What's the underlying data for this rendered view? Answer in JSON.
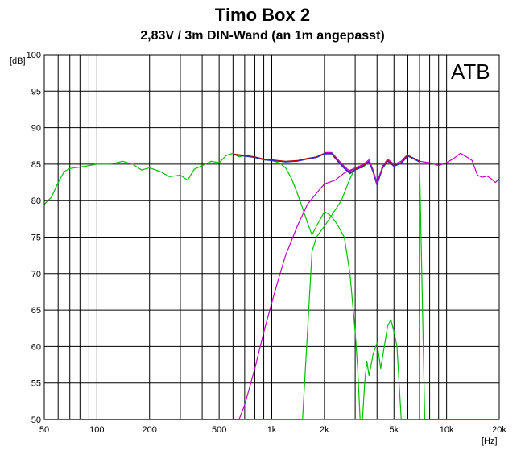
{
  "chart_data": {
    "type": "line",
    "title": "Timo Box 2",
    "subtitle": "2,83V / 3m DIN-Wand (an 1m angepasst)",
    "xlabel": "[Hz]",
    "ylabel": "[dB]",
    "xscale": "log",
    "xlim": [
      50,
      20000
    ],
    "ylim": [
      50,
      100
    ],
    "annotation": "ATB",
    "grid": true,
    "x_ticks": [
      {
        "value": 50,
        "label": "50"
      },
      {
        "value": 100,
        "label": "100"
      },
      {
        "value": 200,
        "label": "200"
      },
      {
        "value": 500,
        "label": "500"
      },
      {
        "value": 1000,
        "label": "1k"
      },
      {
        "value": 2000,
        "label": "2k"
      },
      {
        "value": 5000,
        "label": "5k"
      },
      {
        "value": 10000,
        "label": "10k"
      },
      {
        "value": 20000,
        "label": "20k"
      }
    ],
    "y_ticks": [
      {
        "value": 100,
        "label": "100"
      },
      {
        "value": 95,
        "label": "95"
      },
      {
        "value": 90,
        "label": "90"
      },
      {
        "value": 85,
        "label": "85"
      },
      {
        "value": 80,
        "label": "80"
      },
      {
        "value": 75,
        "label": "75"
      },
      {
        "value": 70,
        "label": "70"
      },
      {
        "value": 65,
        "label": "65"
      },
      {
        "value": 60,
        "label": "60"
      },
      {
        "value": 55,
        "label": "55"
      },
      {
        "value": 50,
        "label": "50"
      }
    ],
    "series": [
      {
        "color": "#00c000",
        "points": [
          [
            50,
            79.5
          ],
          [
            55,
            80.5
          ],
          [
            60,
            82.5
          ],
          [
            65,
            84
          ],
          [
            70,
            84.4
          ],
          [
            80,
            84.6
          ],
          [
            90,
            84.8
          ],
          [
            100,
            85
          ],
          [
            120,
            85
          ],
          [
            140,
            85.4
          ],
          [
            160,
            85
          ],
          [
            180,
            84.2
          ],
          [
            200,
            84.5
          ],
          [
            230,
            84
          ],
          [
            260,
            83.3
          ],
          [
            300,
            83.5
          ],
          [
            330,
            82.8
          ],
          [
            360,
            84.3
          ],
          [
            400,
            84.8
          ],
          [
            450,
            85.4
          ],
          [
            500,
            85.2
          ],
          [
            550,
            86.2
          ],
          [
            600,
            86.5
          ],
          [
            650,
            86
          ],
          [
            700,
            86.2
          ],
          [
            800,
            86
          ],
          [
            900,
            85.6
          ],
          [
            1000,
            85.5
          ],
          [
            1100,
            85.2
          ],
          [
            1200,
            84.5
          ],
          [
            1300,
            83
          ],
          [
            1400,
            81
          ],
          [
            1500,
            79
          ],
          [
            1600,
            77
          ],
          [
            1700,
            75.3
          ],
          [
            1800,
            76.5
          ],
          [
            1900,
            77.5
          ],
          [
            2000,
            78.5
          ],
          [
            2100,
            78.2
          ],
          [
            2200,
            77.8
          ],
          [
            2300,
            77.2
          ],
          [
            2400,
            76.5
          ],
          [
            2600,
            75
          ],
          [
            2800,
            70
          ],
          [
            3000,
            62
          ],
          [
            3100,
            57
          ],
          [
            3200,
            50
          ],
          [
            3300,
            50
          ],
          [
            3400,
            55
          ],
          [
            3500,
            58
          ],
          [
            3600,
            56
          ],
          [
            3800,
            59
          ],
          [
            4000,
            60.5
          ],
          [
            4200,
            57
          ],
          [
            4400,
            60
          ],
          [
            4600,
            62.8
          ],
          [
            4800,
            63.7
          ],
          [
            5000,
            62
          ],
          [
            5200,
            60
          ],
          [
            5500,
            50
          ],
          [
            20000,
            50
          ]
        ]
      },
      {
        "color": "#00c000",
        "points": [
          [
            50,
            50
          ],
          [
            1500,
            50
          ],
          [
            1700,
            73
          ],
          [
            1800,
            75
          ],
          [
            2000,
            76.5
          ],
          [
            2200,
            78
          ],
          [
            2500,
            80
          ],
          [
            2800,
            83
          ],
          [
            3000,
            84.5
          ],
          [
            3300,
            84.5
          ],
          [
            3600,
            85.4
          ],
          [
            3800,
            84
          ],
          [
            4000,
            82.5
          ],
          [
            4300,
            84.5
          ],
          [
            4600,
            85.5
          ],
          [
            5000,
            84.8
          ],
          [
            5500,
            85.2
          ],
          [
            6000,
            86.2
          ],
          [
            6500,
            85.8
          ],
          [
            7000,
            85.4
          ],
          [
            7500,
            50
          ],
          [
            20000,
            50
          ]
        ]
      },
      {
        "color": "#c000c0",
        "points": [
          [
            50,
            50
          ],
          [
            650,
            50
          ],
          [
            700,
            52
          ],
          [
            800,
            57
          ],
          [
            900,
            62
          ],
          [
            1000,
            66
          ],
          [
            1100,
            69.5
          ],
          [
            1200,
            72.5
          ],
          [
            1400,
            76.5
          ],
          [
            1600,
            79.5
          ],
          [
            1800,
            81
          ],
          [
            2000,
            82.3
          ],
          [
            2300,
            82.8
          ],
          [
            2600,
            83.8
          ],
          [
            3000,
            84.5
          ],
          [
            3300,
            84.8
          ],
          [
            3600,
            85.4
          ],
          [
            3800,
            84
          ],
          [
            4000,
            82.5
          ],
          [
            4300,
            84.5
          ],
          [
            4600,
            85.5
          ],
          [
            5000,
            84.8
          ],
          [
            5500,
            85.2
          ],
          [
            6000,
            86.2
          ],
          [
            6500,
            85.8
          ],
          [
            7000,
            85.4
          ],
          [
            8000,
            85.2
          ],
          [
            9000,
            84.8
          ],
          [
            10000,
            85.2
          ],
          [
            11000,
            85.8
          ],
          [
            12000,
            86.5
          ],
          [
            13000,
            86
          ],
          [
            14000,
            85.5
          ],
          [
            15000,
            83.5
          ],
          [
            16000,
            83.2
          ],
          [
            17000,
            83.4
          ],
          [
            18000,
            83
          ],
          [
            19000,
            82.5
          ],
          [
            20000,
            83
          ]
        ]
      },
      {
        "color": "#b00000",
        "points": [
          [
            600,
            86.4
          ],
          [
            700,
            86.2
          ],
          [
            800,
            86
          ],
          [
            900,
            85.7
          ],
          [
            1000,
            85.6
          ],
          [
            1200,
            85.4
          ],
          [
            1400,
            85.5
          ],
          [
            1600,
            85.8
          ],
          [
            1800,
            86
          ],
          [
            2000,
            86.5
          ],
          [
            2200,
            86.5
          ],
          [
            2400,
            85.4
          ],
          [
            2600,
            84.5
          ],
          [
            2800,
            83.8
          ],
          [
            3000,
            84.3
          ],
          [
            3300,
            84.7
          ],
          [
            3600,
            85.4
          ],
          [
            3800,
            84
          ],
          [
            4000,
            82.2
          ],
          [
            4300,
            84.5
          ],
          [
            4600,
            85.5
          ],
          [
            5000,
            84.8
          ],
          [
            5500,
            85.2
          ],
          [
            6000,
            86.2
          ],
          [
            6500,
            85.8
          ],
          [
            7000,
            85.4
          ]
        ]
      },
      {
        "color": "#3030c0",
        "points": [
          [
            600,
            86.3
          ],
          [
            700,
            86.1
          ],
          [
            800,
            85.9
          ],
          [
            900,
            85.6
          ],
          [
            1000,
            85.5
          ],
          [
            1200,
            85.3
          ],
          [
            1400,
            85.4
          ],
          [
            1600,
            85.7
          ],
          [
            1800,
            85.9
          ],
          [
            2000,
            86.4
          ],
          [
            2200,
            86.4
          ],
          [
            2400,
            85.3
          ],
          [
            2600,
            84.4
          ],
          [
            2800,
            83.7
          ],
          [
            3000,
            84.2
          ],
          [
            3300,
            84.6
          ],
          [
            3600,
            85.3
          ],
          [
            3800,
            83.9
          ],
          [
            4000,
            82.1
          ],
          [
            4300,
            84.4
          ],
          [
            4600,
            85.4
          ],
          [
            5000,
            84.7
          ],
          [
            5500,
            85.1
          ],
          [
            6000,
            86.1
          ],
          [
            6500,
            85.7
          ],
          [
            7000,
            85.3
          ]
        ]
      },
      {
        "color": "#c000c0",
        "points": [
          [
            2000,
            86.6
          ],
          [
            2200,
            86.6
          ],
          [
            2400,
            85.6
          ],
          [
            2600,
            84.7
          ],
          [
            2800,
            84
          ],
          [
            3000,
            84.5
          ],
          [
            3300,
            84.9
          ],
          [
            3600,
            85.6
          ],
          [
            3800,
            84.2
          ],
          [
            4000,
            82.4
          ],
          [
            4300,
            84.7
          ],
          [
            4600,
            85.7
          ],
          [
            5000,
            85
          ],
          [
            5500,
            85.4
          ],
          [
            6000,
            86.4
          ]
        ]
      }
    ]
  }
}
